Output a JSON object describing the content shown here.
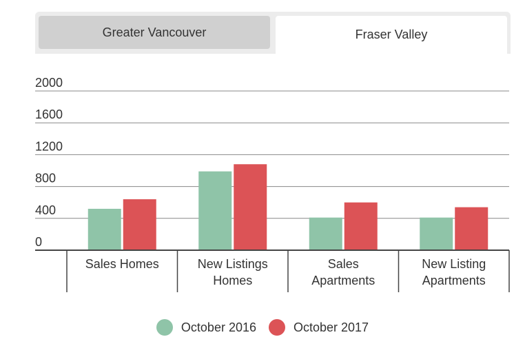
{
  "tabs": [
    {
      "label": "Greater Vancouver",
      "active": false
    },
    {
      "label": "Fraser Valley",
      "active": true
    }
  ],
  "colors": {
    "series_2016": "#8fc4a8",
    "series_2017": "#dc5356",
    "grid": "#888888",
    "axis": "#444444"
  },
  "chart_data": {
    "type": "bar",
    "categories": [
      [
        "Sales Homes"
      ],
      [
        "New Listings",
        "Homes"
      ],
      [
        "Sales",
        "Apartments"
      ],
      [
        "New Listing",
        "Apartments"
      ]
    ],
    "series": [
      {
        "name": "October 2016",
        "values": [
          520,
          990,
          410,
          410
        ]
      },
      {
        "name": "October 2017",
        "values": [
          640,
          1080,
          600,
          540
        ]
      }
    ],
    "ylim": [
      0,
      2000
    ],
    "yticks": [
      0,
      400,
      800,
      1200,
      1600,
      2000
    ],
    "grid": true,
    "legend": "bottom"
  }
}
